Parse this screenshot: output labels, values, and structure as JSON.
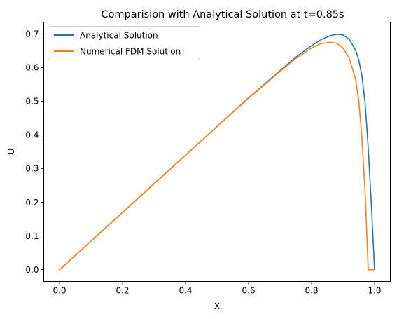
{
  "chart_data": {
    "type": "line",
    "title": "Comparision with Analytical Solution at t=0.85s",
    "xlabel": "X",
    "ylabel": "U",
    "xlim": [
      -0.05,
      1.05
    ],
    "ylim": [
      -0.035,
      0.735
    ],
    "xticks": [
      0.0,
      0.2,
      0.4,
      0.6,
      0.8,
      1.0
    ],
    "xtick_labels": [
      "0.0",
      "0.2",
      "0.4",
      "0.6",
      "0.8",
      "1.0"
    ],
    "yticks": [
      0.0,
      0.1,
      0.2,
      0.3,
      0.4,
      0.5,
      0.6,
      0.7
    ],
    "ytick_labels": [
      "0.0",
      "0.1",
      "0.2",
      "0.3",
      "0.4",
      "0.5",
      "0.6",
      "0.7"
    ],
    "grid": false,
    "legend_position": "top-left",
    "series": [
      {
        "name": "Analytical Solution",
        "color": "#1f77b4",
        "x": [
          0.0,
          0.1,
          0.2,
          0.3,
          0.4,
          0.5,
          0.6,
          0.7,
          0.75,
          0.8,
          0.83,
          0.86,
          0.88,
          0.9,
          0.92,
          0.94,
          0.95,
          0.96,
          0.97,
          0.98,
          0.99,
          1.0
        ],
        "y": [
          0.0,
          0.085,
          0.17,
          0.255,
          0.34,
          0.425,
          0.51,
          0.591,
          0.631,
          0.665,
          0.683,
          0.695,
          0.699,
          0.697,
          0.684,
          0.651,
          0.622,
          0.575,
          0.495,
          0.36,
          0.19,
          0.0
        ]
      },
      {
        "name": "Numerical FDM Solution",
        "color": "#ff7f0e",
        "x": [
          0.0,
          0.1,
          0.2,
          0.3,
          0.4,
          0.5,
          0.6,
          0.7,
          0.75,
          0.8,
          0.83,
          0.86,
          0.88,
          0.9,
          0.92,
          0.94,
          0.95,
          0.96,
          0.97,
          0.98,
          0.99,
          1.0
        ],
        "y": [
          0.0,
          0.085,
          0.17,
          0.255,
          0.34,
          0.425,
          0.509,
          0.589,
          0.627,
          0.658,
          0.671,
          0.675,
          0.672,
          0.658,
          0.627,
          0.565,
          0.5,
          0.39,
          0.23,
          0.0,
          0.0,
          0.0
        ]
      }
    ]
  }
}
